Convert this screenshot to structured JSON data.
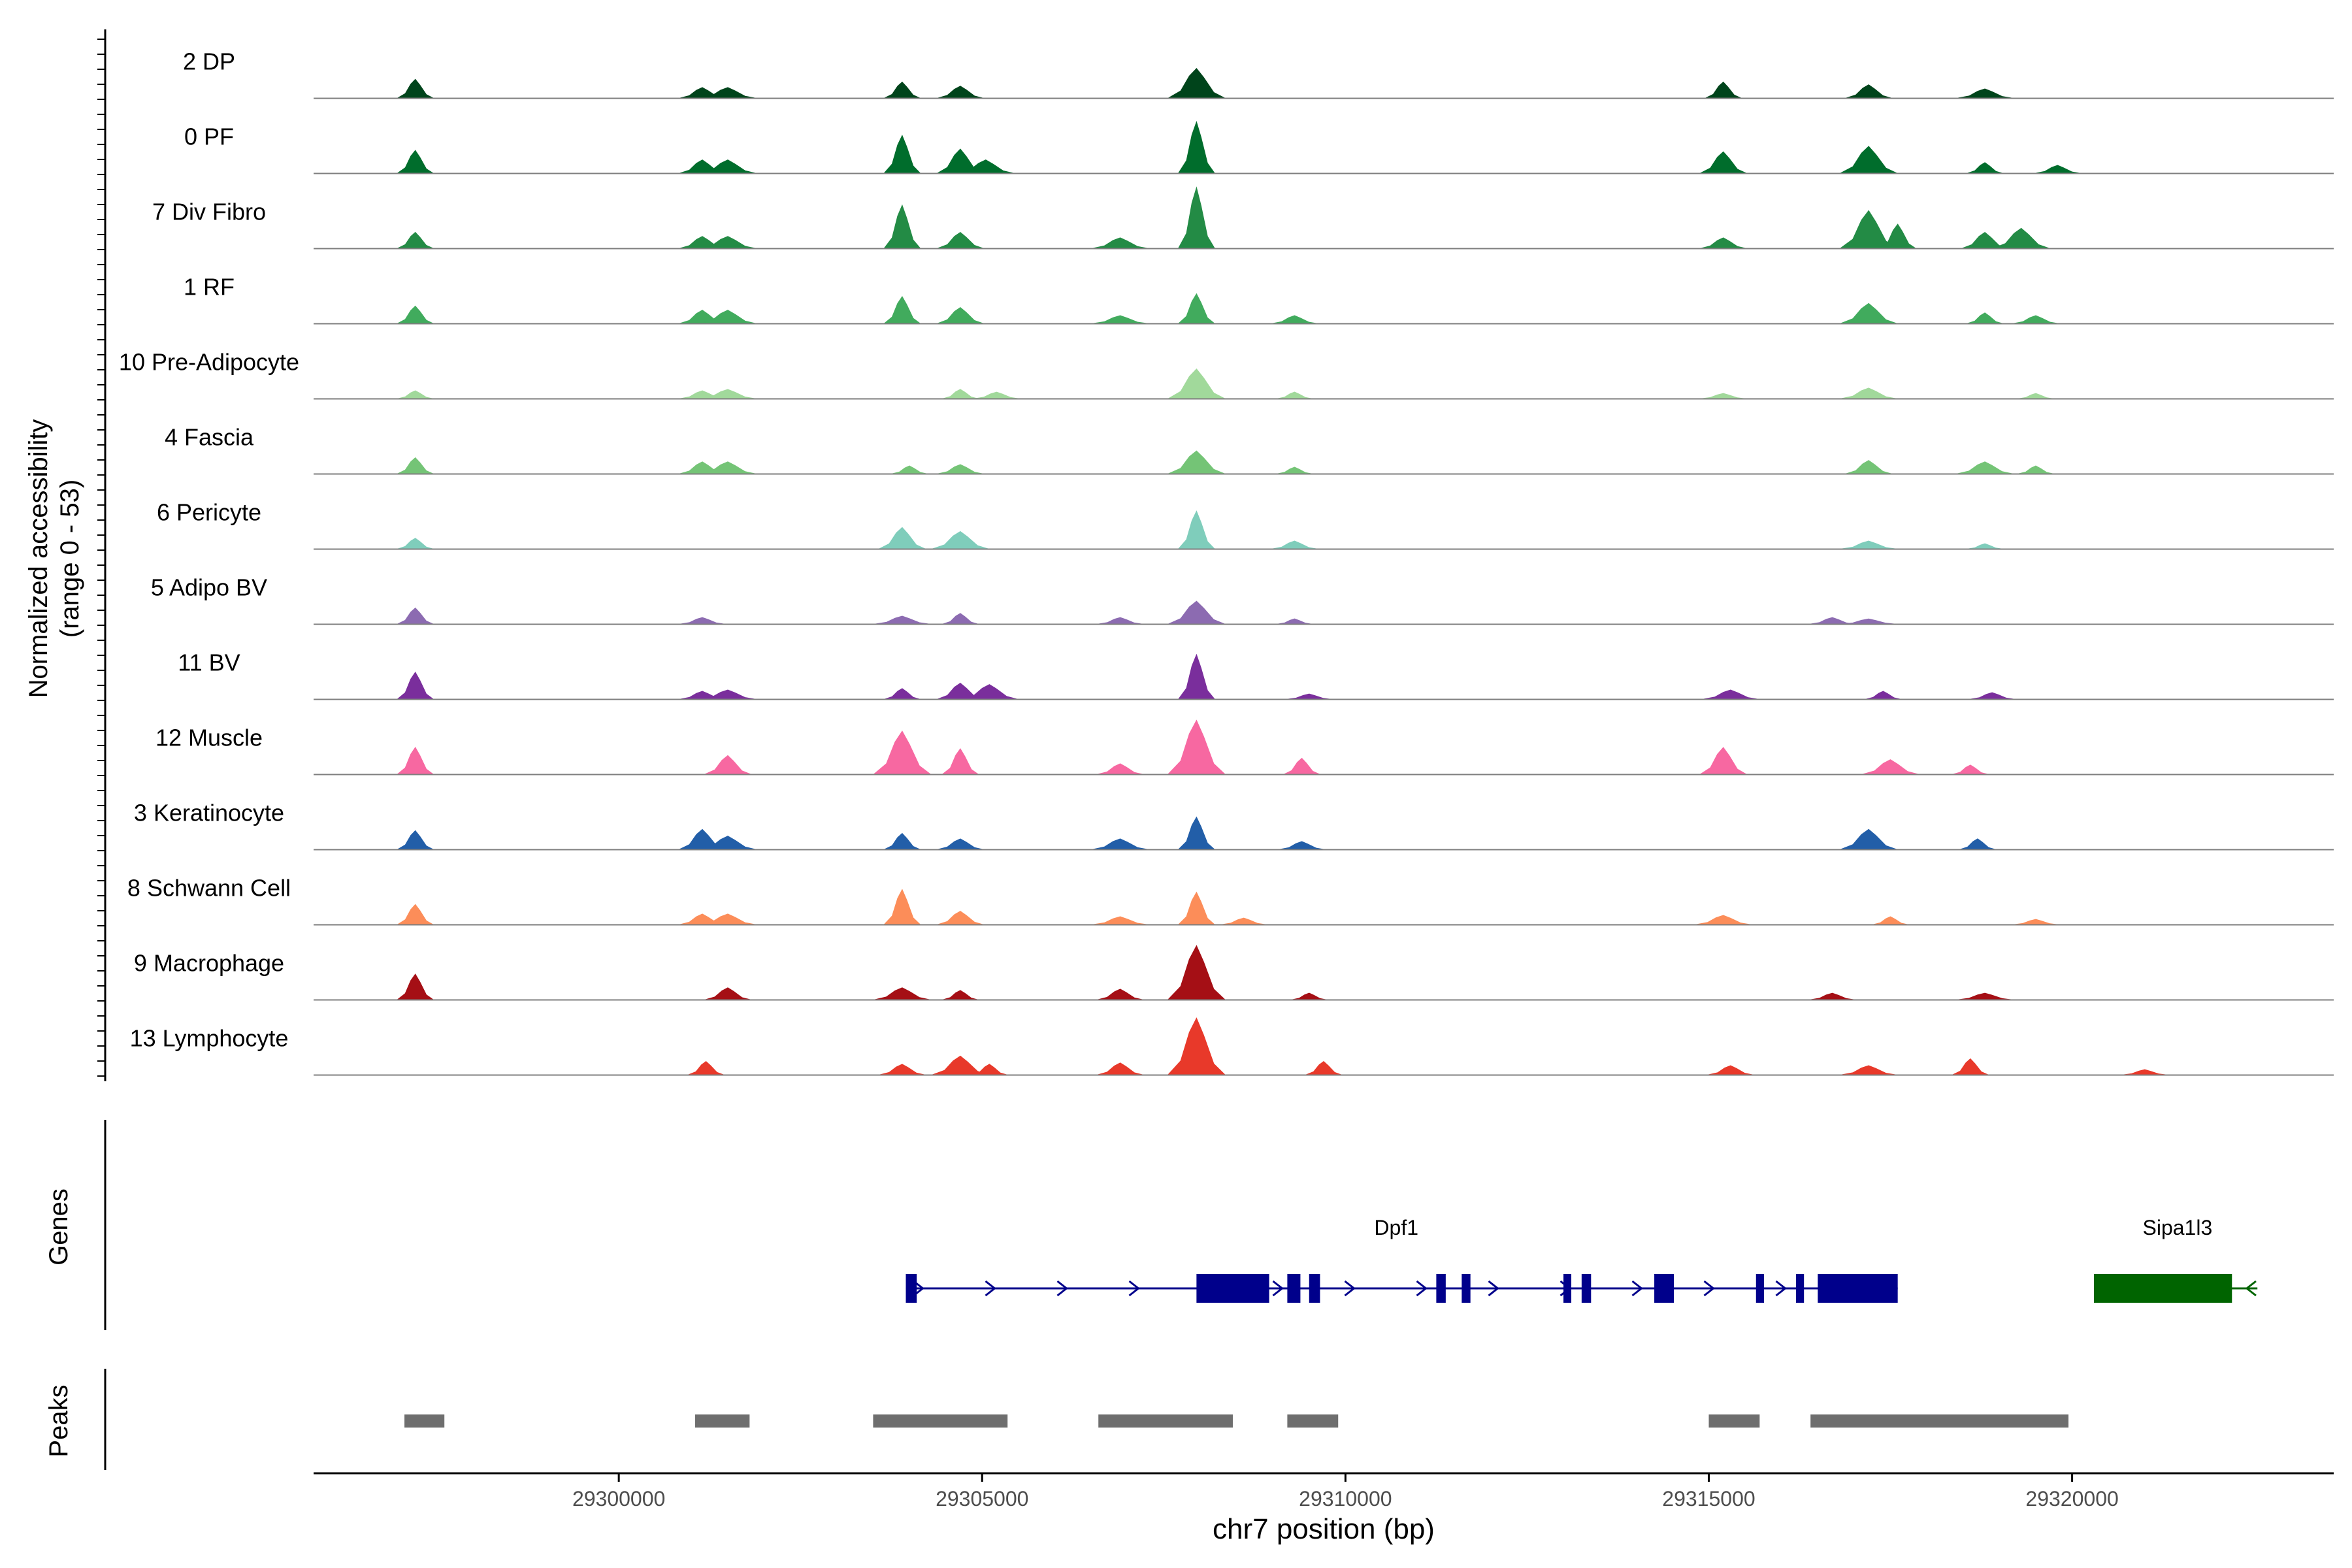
{
  "chart_data": {
    "type": "area",
    "title": "",
    "xlabel": "chr7 position (bp)",
    "ylabel": "Normalized accessibility",
    "ylabel_sub": "(range 0 - 53)",
    "xlim": [
      29295800,
      29323600
    ],
    "ylim": [
      0,
      53
    ],
    "x_ticks": [
      29300000,
      29305000,
      29310000,
      29315000,
      29320000
    ],
    "x_tick_labels": [
      "29300000",
      "29305000",
      "29310000",
      "29315000",
      "29320000"
    ],
    "genes_label": "Genes",
    "peaks_label": "Peaks",
    "tracks": [
      {
        "name": "2 DP",
        "color": "#00441b",
        "peaks": [
          [
            29297200,
            14
          ],
          [
            29301150,
            8
          ],
          [
            29301500,
            8
          ],
          [
            29303900,
            12
          ],
          [
            29304700,
            9
          ],
          [
            29307950,
            22
          ],
          [
            29315200,
            12
          ],
          [
            29317200,
            10
          ],
          [
            29318800,
            7
          ]
        ]
      },
      {
        "name": "0 PF",
        "color": "#006d2c",
        "peaks": [
          [
            29297200,
            17
          ],
          [
            29301150,
            10
          ],
          [
            29301500,
            10
          ],
          [
            29303900,
            28
          ],
          [
            29304700,
            18
          ],
          [
            29305050,
            10
          ],
          [
            29307950,
            38
          ],
          [
            29315200,
            16
          ],
          [
            29317200,
            20
          ],
          [
            29318800,
            8
          ],
          [
            29319800,
            6
          ]
        ]
      },
      {
        "name": "7 Div Fibro",
        "color": "#238b45",
        "peaks": [
          [
            29297200,
            12
          ],
          [
            29301150,
            9
          ],
          [
            29301500,
            9
          ],
          [
            29303900,
            32
          ],
          [
            29304700,
            12
          ],
          [
            29306900,
            8
          ],
          [
            29307950,
            45
          ],
          [
            29315200,
            8
          ],
          [
            29317200,
            28
          ],
          [
            29317600,
            18
          ],
          [
            29318800,
            12
          ],
          [
            29319300,
            15
          ]
        ]
      },
      {
        "name": "1 RF",
        "color": "#41ab5d",
        "peaks": [
          [
            29297200,
            13
          ],
          [
            29301150,
            10
          ],
          [
            29301500,
            10
          ],
          [
            29303900,
            20
          ],
          [
            29304700,
            12
          ],
          [
            29306900,
            6
          ],
          [
            29307950,
            22
          ],
          [
            29309300,
            6
          ],
          [
            29317200,
            15
          ],
          [
            29318800,
            8
          ],
          [
            29319500,
            6
          ]
        ]
      },
      {
        "name": "10 Pre-Adipocyte",
        "color": "#a1d99b",
        "peaks": [
          [
            29297200,
            6
          ],
          [
            29301150,
            6
          ],
          [
            29301500,
            7
          ],
          [
            29304700,
            7
          ],
          [
            29305200,
            5
          ],
          [
            29307950,
            22
          ],
          [
            29309300,
            5
          ],
          [
            29315200,
            4
          ],
          [
            29317200,
            8
          ],
          [
            29319500,
            4
          ]
        ]
      },
      {
        "name": "4 Fascia",
        "color": "#74c476",
        "peaks": [
          [
            29297200,
            12
          ],
          [
            29301150,
            9
          ],
          [
            29301500,
            9
          ],
          [
            29304000,
            6
          ],
          [
            29304700,
            7
          ],
          [
            29307950,
            17
          ],
          [
            29309300,
            5
          ],
          [
            29317200,
            10
          ],
          [
            29318800,
            9
          ],
          [
            29319500,
            6
          ]
        ]
      },
      {
        "name": "6 Pericyte",
        "color": "#7fcdbb",
        "peaks": [
          [
            29297200,
            8
          ],
          [
            29303900,
            16
          ],
          [
            29304700,
            13
          ],
          [
            29307950,
            28
          ],
          [
            29309300,
            6
          ],
          [
            29317200,
            6
          ],
          [
            29318800,
            4
          ]
        ]
      },
      {
        "name": "5 Adipo BV",
        "color": "#8c6bb1",
        "peaks": [
          [
            29297200,
            12
          ],
          [
            29301150,
            5
          ],
          [
            29303900,
            6
          ],
          [
            29304700,
            8
          ],
          [
            29306900,
            5
          ],
          [
            29307950,
            17
          ],
          [
            29309300,
            4
          ],
          [
            29316700,
            5
          ],
          [
            29317200,
            4
          ]
        ]
      },
      {
        "name": "11 BV",
        "color": "#7a2e9c",
        "peaks": [
          [
            29297200,
            20
          ],
          [
            29301150,
            6
          ],
          [
            29301500,
            7
          ],
          [
            29303900,
            8
          ],
          [
            29304700,
            12
          ],
          [
            29305100,
            11
          ],
          [
            29307950,
            33
          ],
          [
            29309500,
            4
          ],
          [
            29315300,
            7
          ],
          [
            29317400,
            6
          ],
          [
            29318900,
            5
          ]
        ]
      },
      {
        "name": "12 Muscle",
        "color": "#f768a1",
        "peaks": [
          [
            29297200,
            20
          ],
          [
            29301500,
            14
          ],
          [
            29303900,
            32
          ],
          [
            29304700,
            19
          ],
          [
            29306900,
            8
          ],
          [
            29307950,
            40
          ],
          [
            29309400,
            12
          ],
          [
            29315200,
            20
          ],
          [
            29317500,
            11
          ],
          [
            29318600,
            7
          ]
        ]
      },
      {
        "name": "3 Keratinocyte",
        "color": "#225ea8",
        "peaks": [
          [
            29297200,
            14
          ],
          [
            29301150,
            15
          ],
          [
            29301500,
            10
          ],
          [
            29303900,
            12
          ],
          [
            29304700,
            8
          ],
          [
            29306900,
            8
          ],
          [
            29307950,
            24
          ],
          [
            29309400,
            6
          ],
          [
            29317200,
            15
          ],
          [
            29318700,
            8
          ]
        ]
      },
      {
        "name": "8 Schwann Cell",
        "color": "#fc8d59",
        "peaks": [
          [
            29297200,
            15
          ],
          [
            29301150,
            8
          ],
          [
            29301500,
            8
          ],
          [
            29303900,
            26
          ],
          [
            29304700,
            10
          ],
          [
            29306900,
            6
          ],
          [
            29307950,
            24
          ],
          [
            29308600,
            5
          ],
          [
            29315200,
            7
          ],
          [
            29317500,
            6
          ],
          [
            29319500,
            4
          ]
        ]
      },
      {
        "name": "9 Macrophage",
        "color": "#a50f15",
        "peaks": [
          [
            29297200,
            19
          ],
          [
            29301500,
            9
          ],
          [
            29303900,
            9
          ],
          [
            29304700,
            7
          ],
          [
            29306900,
            8
          ],
          [
            29307950,
            40
          ],
          [
            29309500,
            5
          ],
          [
            29316700,
            5
          ],
          [
            29318800,
            5
          ]
        ]
      },
      {
        "name": "13 Lymphocyte",
        "color": "#e8392a",
        "peaks": [
          [
            29301200,
            10
          ],
          [
            29303900,
            8
          ],
          [
            29304700,
            14
          ],
          [
            29305100,
            8
          ],
          [
            29306900,
            9
          ],
          [
            29307950,
            42
          ],
          [
            29309700,
            10
          ],
          [
            29315300,
            7
          ],
          [
            29317200,
            7
          ],
          [
            29318600,
            12
          ],
          [
            29321000,
            4
          ]
        ]
      }
    ],
    "genes": [
      {
        "name": "Dpf1",
        "strand": "+",
        "color": "#00008b",
        "start": 29303950,
        "end": 29317600,
        "exons": [
          [
            29303950,
            29304100
          ],
          [
            29307950,
            29308950
          ],
          [
            29309200,
            29309380
          ],
          [
            29309500,
            29309650
          ],
          [
            29311250,
            29311380
          ],
          [
            29311600,
            29311720
          ],
          [
            29313000,
            29313100
          ],
          [
            29313250,
            29313380
          ],
          [
            29314250,
            29314520
          ],
          [
            29315650,
            29315760
          ],
          [
            29316200,
            29316310
          ],
          [
            29316500,
            29317600
          ]
        ]
      },
      {
        "name": "Sipa1l3",
        "strand": "-",
        "color": "#006400",
        "start": 29320300,
        "end": 29322550,
        "exons": [
          [
            29320300,
            29322200
          ]
        ]
      }
    ],
    "peaks": [
      [
        29297050,
        29297600
      ],
      [
        29301050,
        29301800
      ],
      [
        29303500,
        29305350
      ],
      [
        29306600,
        29308450
      ],
      [
        29309200,
        29309900
      ],
      [
        29315000,
        29315700
      ],
      [
        29316400,
        29319950
      ]
    ]
  }
}
